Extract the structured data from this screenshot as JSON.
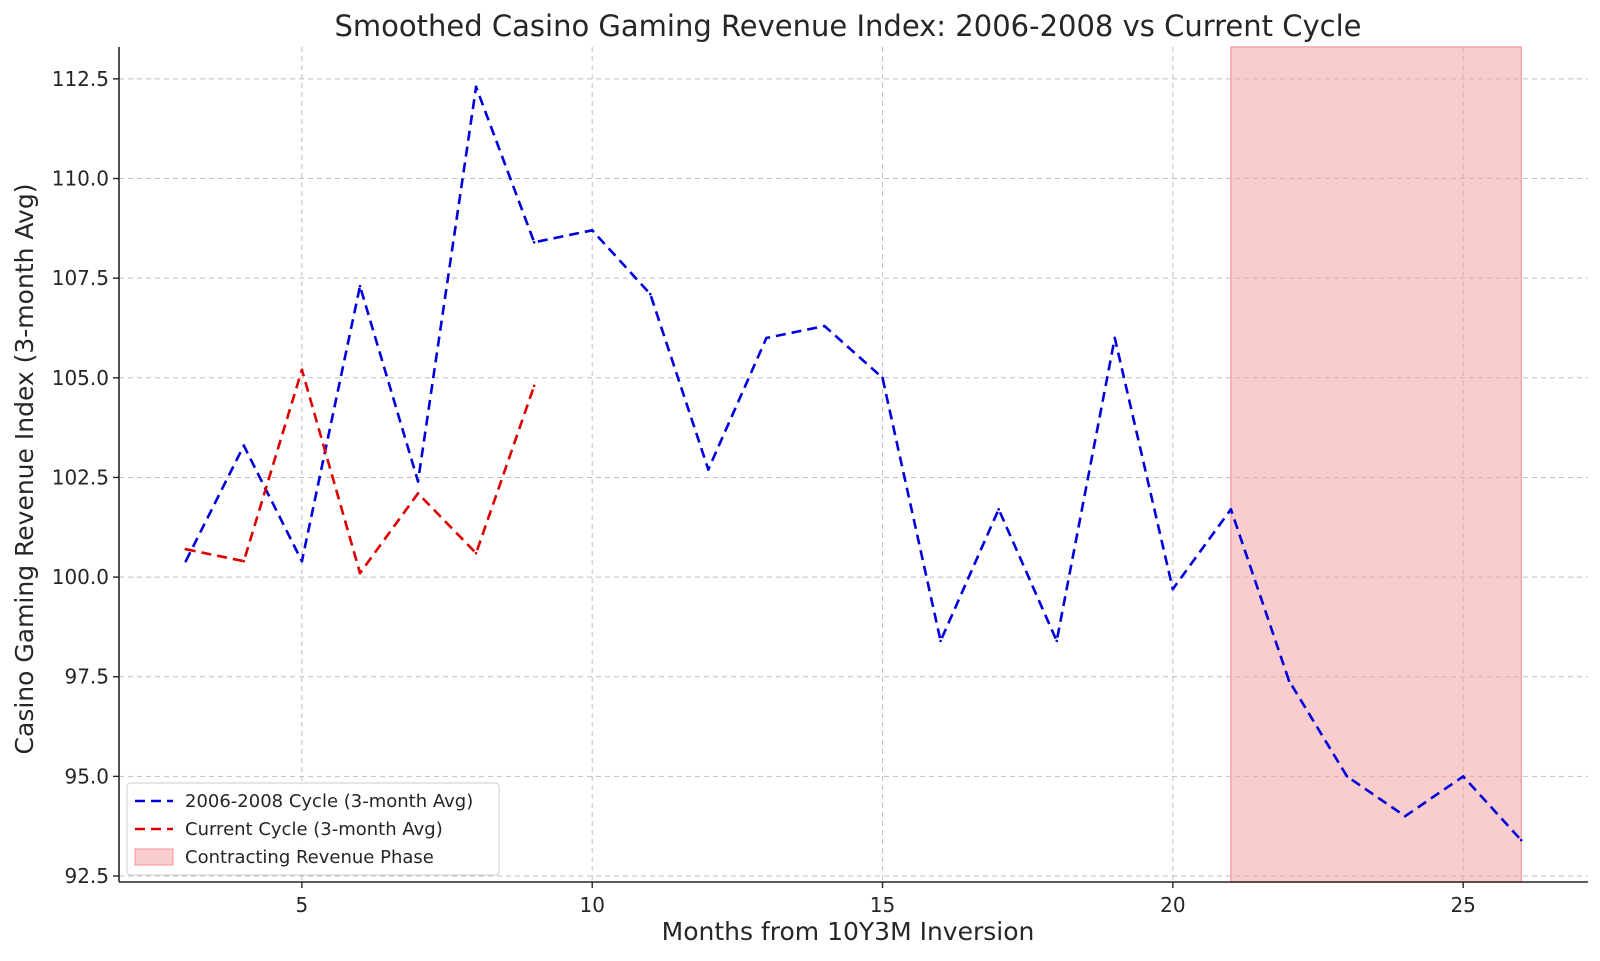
{
  "chart_data": {
    "type": "line",
    "title": "Smoothed Casino Gaming Revenue Index: 2006-2008 vs Current Cycle",
    "xlabel": "Months from 10Y3M Inversion",
    "ylabel": "Casino Gaming Revenue Index (3-month Avg)",
    "xlim": [
      1.85,
      27.15
    ],
    "ylim": [
      92.35,
      113.3
    ],
    "xticks": [
      5,
      10,
      15,
      20,
      25
    ],
    "yticks": [
      92.5,
      95.0,
      97.5,
      100.0,
      102.5,
      105.0,
      107.5,
      110.0,
      112.5
    ],
    "grid": true,
    "legend_position": "lower-left",
    "series": [
      {
        "name": "2006-2008 Cycle (3-month Avg)",
        "color": "#0000dd",
        "style": "dashed",
        "x": [
          3,
          4,
          5,
          6,
          7,
          8,
          9,
          10,
          11,
          12,
          13,
          14,
          15,
          16,
          17,
          18,
          19,
          20,
          21,
          22,
          23,
          24,
          25,
          26
        ],
        "y": [
          100.4,
          103.3,
          100.4,
          107.3,
          102.4,
          112.3,
          108.4,
          108.7,
          107.1,
          102.7,
          106.0,
          106.3,
          105.0,
          98.4,
          101.7,
          98.4,
          106.0,
          99.7,
          101.7,
          97.4,
          95.0,
          94.0,
          95.0,
          93.4
        ]
      },
      {
        "name": "Current Cycle (3-month Avg)",
        "color": "#dd0000",
        "style": "dashed",
        "x": [
          3,
          4,
          5,
          6,
          7,
          8,
          9
        ],
        "y": [
          100.7,
          100.4,
          105.2,
          100.1,
          102.1,
          100.6,
          104.8
        ]
      }
    ],
    "shaded_regions": [
      {
        "name": "Contracting Revenue Phase",
        "x_start": 21,
        "x_end": 26,
        "color": "#f4a4a4"
      }
    ]
  }
}
